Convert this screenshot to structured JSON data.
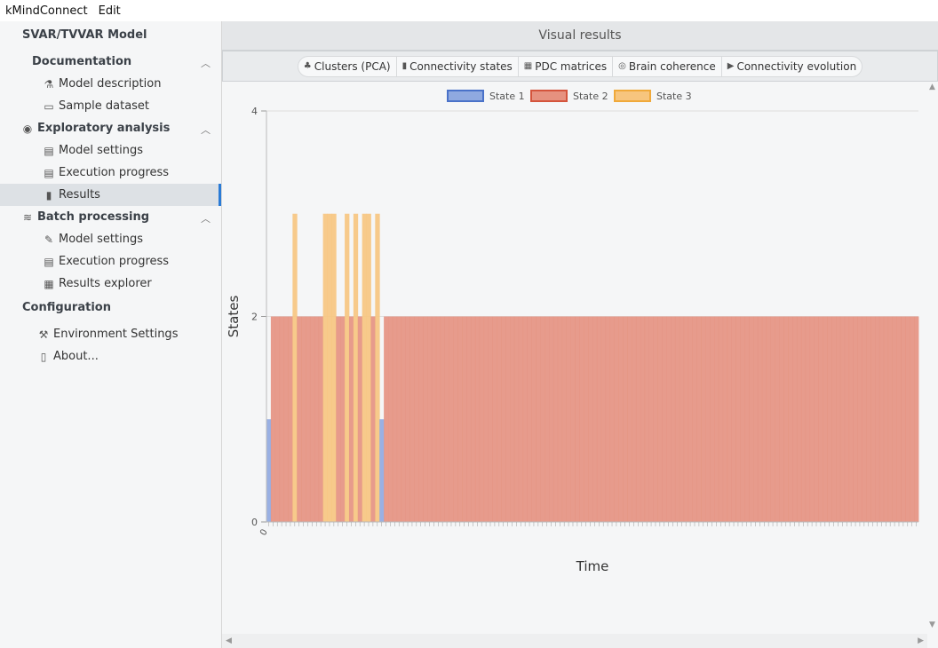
{
  "menubar": {
    "app": "kMindConnect",
    "edit": "Edit"
  },
  "sidebar": {
    "title": "SVAR/TVVAR Model",
    "documentation": {
      "label": "Documentation",
      "items": [
        "Model description",
        "Sample dataset"
      ]
    },
    "exploratory": {
      "label": "Exploratory analysis",
      "items": [
        "Model settings",
        "Execution progress",
        "Results"
      ]
    },
    "batch": {
      "label": "Batch processing",
      "items": [
        "Model settings",
        "Execution progress",
        "Results explorer"
      ]
    },
    "configuration": {
      "label": "Configuration",
      "items": [
        "Environment Settings",
        "About..."
      ]
    }
  },
  "main": {
    "header": "Visual results",
    "tabs": [
      "Clusters (PCA)",
      "Connectivity states",
      "PDC matrices",
      "Brain coherence",
      "Connectivity evolution"
    ]
  },
  "colors": {
    "state1": "#8fa9e0",
    "state2": "#e6917f",
    "state3": "#f7c57e",
    "accent": "#2a7bd6"
  },
  "chart_data": {
    "type": "bar",
    "title": "",
    "xlabel": "Time",
    "ylabel": "States",
    "ylim": [
      0,
      4
    ],
    "yticks": [
      0,
      2,
      4
    ],
    "x_first_tick": "0",
    "legend_position": "top",
    "series": [
      {
        "name": "State 1",
        "value": 1
      },
      {
        "name": "State 2",
        "value": 2
      },
      {
        "name": "State 3",
        "value": 3
      }
    ],
    "num_timepoints": 150,
    "states": [
      1,
      2,
      2,
      2,
      2,
      2,
      3,
      2,
      2,
      2,
      2,
      2,
      2,
      3,
      3,
      3,
      2,
      2,
      3,
      2,
      3,
      2,
      3,
      3,
      2,
      3,
      1,
      2,
      2,
      2,
      2,
      2,
      2,
      2,
      2,
      2,
      2,
      2,
      2,
      2,
      2,
      2,
      2,
      2,
      2,
      2,
      2,
      2,
      2,
      2,
      2,
      2,
      2,
      2,
      2,
      2,
      2,
      2,
      2,
      2,
      2,
      2,
      2,
      2,
      2,
      2,
      2,
      2,
      2,
      2,
      2,
      2,
      2,
      2,
      2,
      2,
      2,
      2,
      2,
      2,
      2,
      2,
      2,
      2,
      2,
      2,
      2,
      2,
      2,
      2,
      2,
      2,
      2,
      2,
      2,
      2,
      2,
      2,
      2,
      2,
      2,
      2,
      2,
      2,
      2,
      2,
      2,
      2,
      2,
      2,
      2,
      2,
      2,
      2,
      2,
      2,
      2,
      2,
      2,
      2,
      2,
      2,
      2,
      2,
      2,
      2,
      2,
      2,
      2,
      2,
      2,
      2,
      2,
      2,
      2,
      2,
      2,
      2,
      2,
      2,
      2,
      2,
      2,
      2,
      2,
      2,
      2,
      2,
      2,
      2
    ]
  }
}
